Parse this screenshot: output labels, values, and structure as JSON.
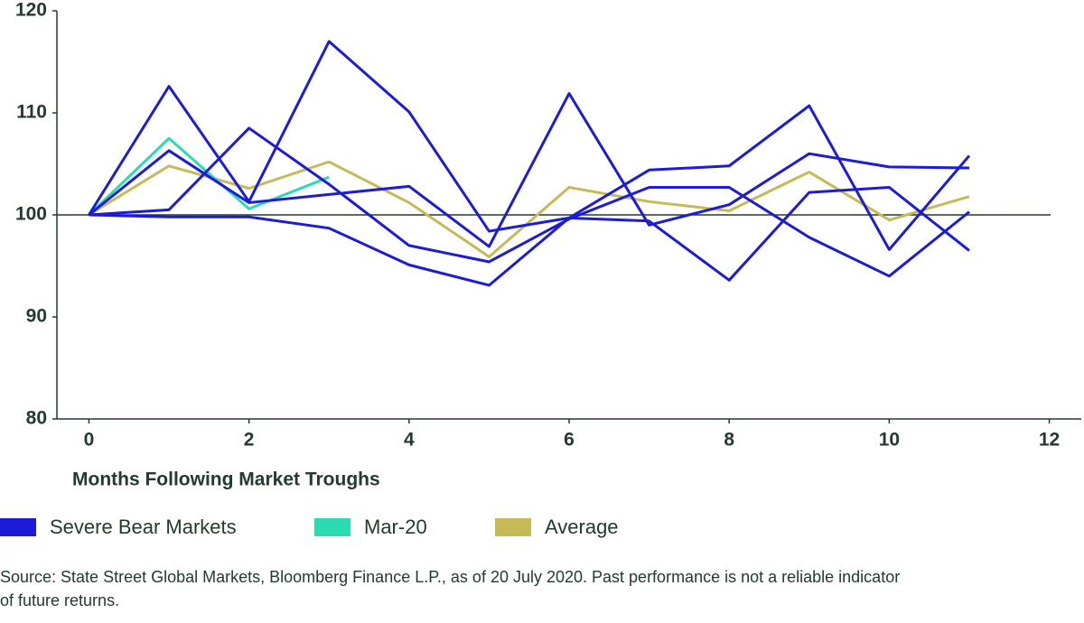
{
  "chart_data": {
    "type": "line",
    "x_label": "Months Following Market Troughs",
    "x": [
      0,
      1,
      2,
      3,
      4,
      5,
      6,
      7,
      8,
      9,
      10,
      11
    ],
    "xlim": [
      -0.4,
      12.4
    ],
    "xticks": [
      0,
      2,
      4,
      6,
      8,
      10,
      12
    ],
    "ylim": [
      80,
      120
    ],
    "yticks": [
      80,
      90,
      100,
      110,
      120
    ],
    "hline": 100,
    "series": [
      {
        "name": "Severe Bear Markets",
        "color": "#1b1bd8",
        "lines": [
          [
            100,
            112.6,
            101.3,
            117.0,
            110.1,
            98.4,
            99.7,
            104.4,
            104.8,
            110.7,
            96.6,
            105.8
          ],
          [
            100,
            106.3,
            101.2,
            102.0,
            102.8,
            96.9,
            111.9,
            99.0,
            101.0,
            106.0,
            104.7,
            104.6
          ],
          [
            100,
            100.5,
            108.5,
            103.0,
            97.0,
            95.4,
            99.6,
            102.7,
            102.7,
            97.8,
            94.0,
            100.3
          ],
          [
            100,
            99.8,
            99.8,
            98.7,
            95.1,
            93.1,
            99.7,
            99.4,
            93.6,
            102.2,
            102.7,
            96.5
          ]
        ]
      },
      {
        "name": "Mar-20",
        "color": "#2bdcb2",
        "values": [
          100,
          107.5,
          100.6,
          103.7,
          null,
          null,
          null,
          null,
          null,
          null,
          null,
          null
        ]
      },
      {
        "name": "Average",
        "color": "#c6b957",
        "values": [
          100,
          104.8,
          102.6,
          105.2,
          101.2,
          95.9,
          102.7,
          101.3,
          100.4,
          104.2,
          99.5,
          101.8
        ]
      }
    ],
    "source": [
      "Source: State Street Global Markets, Bloomberg Finance L.P., as of 20 July 2020. Past performance is not a reliable indicator",
      "of future returns."
    ]
  }
}
